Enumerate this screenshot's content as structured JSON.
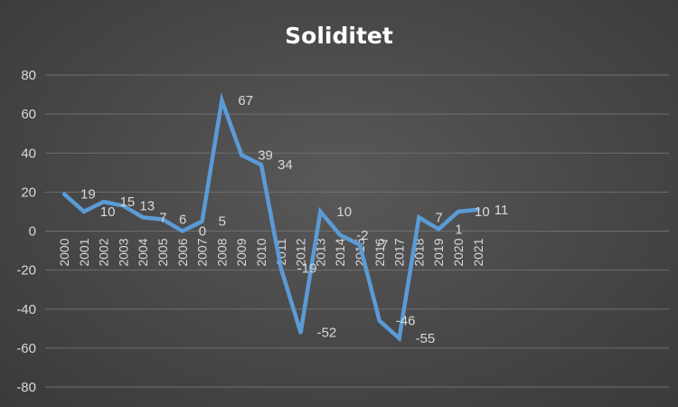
{
  "chart_data": {
    "type": "line",
    "title": "Soliditet",
    "xlabel": "",
    "ylabel": "",
    "ylim": [
      -80,
      80
    ],
    "yticks": [
      -80,
      -60,
      -40,
      -20,
      0,
      20,
      40,
      60,
      80
    ],
    "grid": true,
    "legend": "none",
    "categories": [
      "2000",
      "2001",
      "2002",
      "2003",
      "2004",
      "2005",
      "2006",
      "2007",
      "2008",
      "2009",
      "2010",
      "2011",
      "2012",
      "2013",
      "2014",
      "2015",
      "2016",
      "2017",
      "2018",
      "2019",
      "2020",
      "2021"
    ],
    "series": [
      {
        "values": [
          19,
          10,
          15,
          13,
          7,
          6,
          0,
          5,
          67,
          39,
          34,
          -19,
          -52,
          10,
          -2,
          -7,
          -46,
          -55,
          7,
          1,
          10,
          11
        ],
        "labels": [
          "19",
          "10",
          "15",
          "13",
          "7",
          "6",
          "0",
          "5",
          "67",
          "39",
          "34",
          "-19",
          "-52",
          "10",
          "-2",
          "-7",
          "-46",
          "-55",
          "7",
          "1",
          "10",
          "11"
        ],
        "color": "#5b9bd5"
      }
    ]
  },
  "colors": {
    "grid": "#6e6e6e",
    "text": "#d9d9d9",
    "title": "#ffffff"
  }
}
